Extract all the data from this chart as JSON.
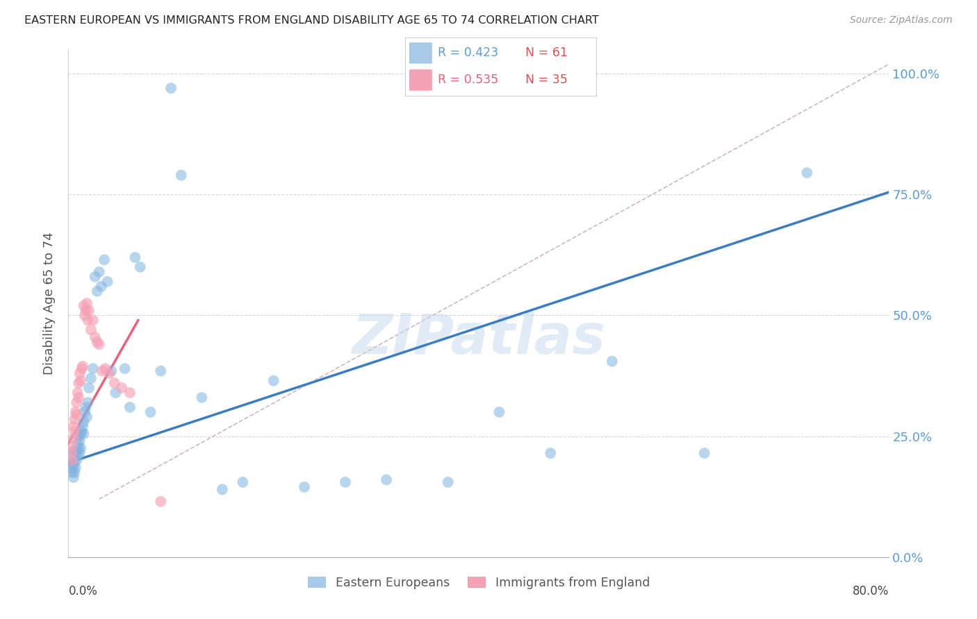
{
  "title": "EASTERN EUROPEAN VS IMMIGRANTS FROM ENGLAND DISABILITY AGE 65 TO 74 CORRELATION CHART",
  "source": "Source: ZipAtlas.com",
  "ylabel": "Disability Age 65 to 74",
  "ylim": [
    0.0,
    1.05
  ],
  "xlim": [
    0.0,
    0.8
  ],
  "ytick_labels": [
    "0.0%",
    "25.0%",
    "50.0%",
    "75.0%",
    "100.0%"
  ],
  "ytick_values": [
    0.0,
    0.25,
    0.5,
    0.75,
    1.0
  ],
  "xtick_values": [
    0.0,
    0.2,
    0.4,
    0.6,
    0.8
  ],
  "legend_blue_r": "R = 0.423",
  "legend_blue_n": "N = 61",
  "legend_pink_r": "R = 0.535",
  "legend_pink_n": "N = 35",
  "blue_color": "#7fb3e0",
  "pink_color": "#f4a0b5",
  "blue_line_color": "#3a7cc4",
  "pink_line_color": "#e8607a",
  "dashed_line_color": "#c8a0b0",
  "watermark": "ZIPatlas",
  "blue_scatter_x": [
    0.003,
    0.003,
    0.004,
    0.004,
    0.005,
    0.005,
    0.005,
    0.006,
    0.006,
    0.007,
    0.007,
    0.008,
    0.008,
    0.009,
    0.009,
    0.01,
    0.01,
    0.011,
    0.011,
    0.012,
    0.012,
    0.013,
    0.014,
    0.015,
    0.015,
    0.016,
    0.017,
    0.018,
    0.019,
    0.02,
    0.022,
    0.024,
    0.026,
    0.028,
    0.03,
    0.032,
    0.035,
    0.038,
    0.042,
    0.046,
    0.055,
    0.06,
    0.065,
    0.07,
    0.08,
    0.09,
    0.1,
    0.11,
    0.13,
    0.15,
    0.17,
    0.2,
    0.23,
    0.27,
    0.31,
    0.37,
    0.42,
    0.47,
    0.53,
    0.62,
    0.72
  ],
  "blue_scatter_y": [
    0.21,
    0.185,
    0.195,
    0.175,
    0.22,
    0.19,
    0.165,
    0.2,
    0.175,
    0.215,
    0.185,
    0.22,
    0.2,
    0.235,
    0.21,
    0.25,
    0.225,
    0.24,
    0.215,
    0.255,
    0.225,
    0.26,
    0.27,
    0.28,
    0.255,
    0.3,
    0.31,
    0.29,
    0.32,
    0.35,
    0.37,
    0.39,
    0.58,
    0.55,
    0.59,
    0.56,
    0.615,
    0.57,
    0.385,
    0.34,
    0.39,
    0.31,
    0.62,
    0.6,
    0.3,
    0.385,
    0.97,
    0.79,
    0.33,
    0.14,
    0.155,
    0.365,
    0.145,
    0.155,
    0.16,
    0.155,
    0.3,
    0.215,
    0.405,
    0.215,
    0.795
  ],
  "pink_scatter_x": [
    0.003,
    0.004,
    0.004,
    0.005,
    0.005,
    0.006,
    0.006,
    0.007,
    0.008,
    0.008,
    0.009,
    0.01,
    0.01,
    0.011,
    0.012,
    0.013,
    0.014,
    0.015,
    0.016,
    0.017,
    0.018,
    0.019,
    0.02,
    0.022,
    0.024,
    0.026,
    0.028,
    0.03,
    0.033,
    0.036,
    0.04,
    0.045,
    0.052,
    0.06,
    0.09
  ],
  "pink_scatter_y": [
    0.215,
    0.23,
    0.2,
    0.27,
    0.245,
    0.285,
    0.26,
    0.3,
    0.32,
    0.295,
    0.34,
    0.36,
    0.33,
    0.38,
    0.365,
    0.39,
    0.395,
    0.52,
    0.5,
    0.51,
    0.525,
    0.49,
    0.51,
    0.47,
    0.49,
    0.455,
    0.445,
    0.44,
    0.385,
    0.39,
    0.38,
    0.36,
    0.35,
    0.34,
    0.115
  ],
  "blue_line_x": [
    0.0,
    0.8
  ],
  "blue_line_y": [
    0.195,
    0.755
  ],
  "pink_line_x": [
    0.0,
    0.068
  ],
  "pink_line_y": [
    0.235,
    0.49
  ],
  "dashed_line_x": [
    0.03,
    0.8
  ],
  "dashed_line_y": [
    0.12,
    1.02
  ]
}
